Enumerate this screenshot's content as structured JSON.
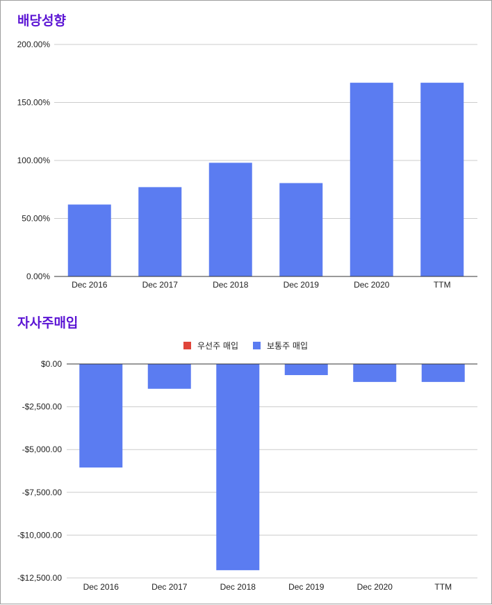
{
  "chart_data": [
    {
      "type": "bar",
      "title": "배당성향",
      "categories": [
        "Dec 2016",
        "Dec 2017",
        "Dec 2018",
        "Dec 2019",
        "Dec 2020",
        "TTM"
      ],
      "series": [
        {
          "values": [
            62,
            77,
            98,
            80.5,
            167,
            167
          ],
          "color": "#5b7cf1"
        }
      ],
      "yticks": [
        "0.00%",
        "50.00%",
        "100.00%",
        "150.00%",
        "200.00%"
      ],
      "ylim": [
        0,
        200
      ],
      "grid": true,
      "legend": "none"
    },
    {
      "type": "bar",
      "title": "자사주매입",
      "categories": [
        "Dec 2016",
        "Dec 2017",
        "Dec 2018",
        "Dec 2019",
        "Dec 2020",
        "TTM"
      ],
      "series": [
        {
          "name": "우선주 매입",
          "values": [
            0,
            0,
            0,
            0,
            0,
            0
          ],
          "color": "#e0453a"
        },
        {
          "name": "보통주 매입",
          "values": [
            -6050,
            -1450,
            -12050,
            -650,
            -1050,
            -1050
          ],
          "color": "#5b7cf1"
        }
      ],
      "yticks": [
        "$0.00",
        "-$2,500.00",
        "-$5,000.00",
        "-$7,500.00",
        "-$10,000.00",
        "-$12,500.00"
      ],
      "ylim": [
        -12500,
        0
      ],
      "grid": true,
      "legend": "top-center"
    }
  ]
}
